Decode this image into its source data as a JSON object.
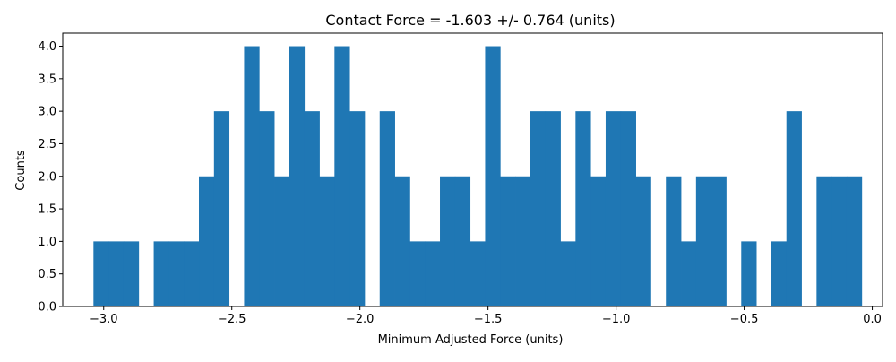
{
  "chart_data": {
    "type": "bar",
    "title": "Contact Force = -1.603 +/- 0.764 (units)",
    "xlabel": "Minimum Adjusted Force (units)",
    "ylabel": "Counts",
    "xlim": [
      -3.16,
      0.04
    ],
    "ylim": [
      0,
      4.2
    ],
    "grid": false,
    "color": "#1f77b4",
    "bin_start": -3.04,
    "bin_width": 0.0588,
    "counts": [
      1,
      1,
      1,
      0,
      1,
      1,
      1,
      2,
      3,
      0,
      4,
      3,
      2,
      4,
      3,
      2,
      4,
      3,
      0,
      3,
      2,
      1,
      1,
      2,
      2,
      1,
      4,
      2,
      2,
      3,
      3,
      1,
      3,
      2,
      3,
      3,
      2,
      0,
      2,
      1,
      2,
      2,
      0,
      1,
      0,
      1,
      3,
      0,
      2,
      2,
      2
    ],
    "xticks": [
      -3.0,
      -2.5,
      -2.0,
      -1.5,
      -1.0,
      -0.5,
      0.0
    ],
    "xtick_labels": [
      "−3.0",
      "−2.5",
      "−2.0",
      "−1.5",
      "−1.0",
      "−0.5",
      "0.0"
    ],
    "yticks": [
      0.0,
      0.5,
      1.0,
      1.5,
      2.0,
      2.5,
      3.0,
      3.5,
      4.0
    ],
    "ytick_labels": [
      "0.0",
      "0.5",
      "1.0",
      "1.5",
      "2.0",
      "2.5",
      "3.0",
      "3.5",
      "4.0"
    ]
  }
}
